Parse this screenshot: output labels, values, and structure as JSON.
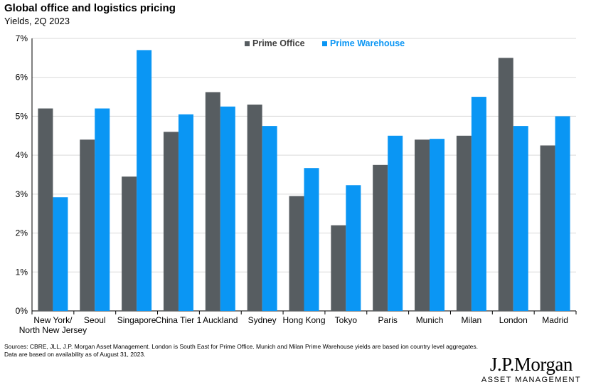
{
  "title": "Global office and logistics pricing",
  "subtitle": "Yields, 2Q 2023",
  "colors": {
    "office": "#575d61",
    "warehouse": "#0a96f4",
    "axis": "#000000"
  },
  "chart_data": {
    "type": "bar",
    "categories": [
      [
        "New York/",
        "North New Jersey"
      ],
      [
        "Seoul"
      ],
      [
        "Singapore"
      ],
      [
        "China Tier 1"
      ],
      [
        "Auckland"
      ],
      [
        "Sydney"
      ],
      [
        "Hong Kong"
      ],
      [
        "Tokyo"
      ],
      [
        "Paris"
      ],
      [
        "Munich"
      ],
      [
        "Milan"
      ],
      [
        "London"
      ],
      [
        "Madrid"
      ]
    ],
    "series": [
      {
        "name": "Prime Office",
        "values": [
          5.2,
          4.4,
          3.45,
          4.6,
          5.62,
          5.3,
          2.95,
          2.2,
          3.75,
          4.4,
          4.5,
          6.5,
          4.25
        ]
      },
      {
        "name": "Prime Warehouse",
        "values": [
          2.92,
          5.2,
          6.7,
          5.05,
          5.25,
          4.75,
          3.67,
          3.23,
          4.5,
          4.42,
          5.5,
          4.75,
          5.0
        ]
      }
    ],
    "ylim": [
      0,
      7
    ],
    "yticks": [
      "0%",
      "1%",
      "2%",
      "3%",
      "4%",
      "5%",
      "6%",
      "7%"
    ],
    "grid": true,
    "legend": "top-center"
  },
  "footnotes": {
    "line1": "Sources: CBRE, JLL, J.P. Morgan Asset Management. London is South East for Prime Office. Munich and Milan Prime Warehouse yields are based ion country level aggregates.",
    "line2": "Data are based on availability as of August 31, 2023."
  },
  "logo": {
    "main": "J.P.Morgan",
    "sub": "ASSET MANAGEMENT"
  }
}
